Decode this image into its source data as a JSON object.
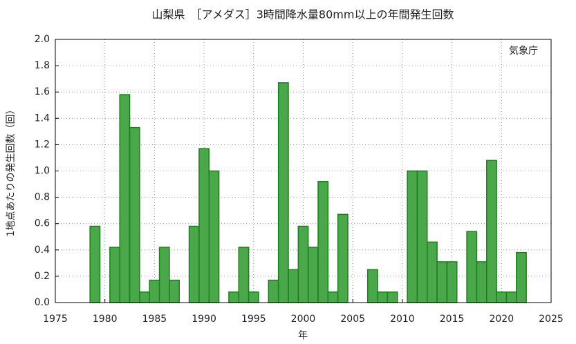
{
  "chart_data": {
    "type": "bar",
    "title": "山梨県　［アメダス］3時間降水量80mm以上の年間発生回数",
    "annotation": "気象庁",
    "xlabel": "年",
    "ylabel": "1地点あたりの発生回数（回）",
    "x": [
      1979,
      1980,
      1981,
      1982,
      1983,
      1984,
      1985,
      1986,
      1987,
      1988,
      1989,
      1990,
      1991,
      1992,
      1993,
      1994,
      1995,
      1996,
      1997,
      1998,
      1999,
      2000,
      2001,
      2002,
      2003,
      2004,
      2005,
      2006,
      2007,
      2008,
      2009,
      2010,
      2011,
      2012,
      2013,
      2014,
      2015,
      2016,
      2017,
      2018,
      2019,
      2020,
      2021,
      2022
    ],
    "values": [
      0.58,
      0,
      0.42,
      1.58,
      1.33,
      0.08,
      0.17,
      0.42,
      0.17,
      0,
      0.58,
      1.17,
      1.0,
      0,
      0.08,
      0.42,
      0.08,
      0,
      0.17,
      1.67,
      0.25,
      0.58,
      0.42,
      0.92,
      0.08,
      0.67,
      0,
      0,
      0.25,
      0.08,
      0.08,
      0,
      1.0,
      1.0,
      0.46,
      0.31,
      0.31,
      0,
      0.54,
      0.31,
      1.08,
      0.08,
      0.08,
      0.38
    ],
    "color": "#4aa84a",
    "edgecolor": "#1a7f1a",
    "xlim": [
      1975,
      2025
    ],
    "xticks": [
      1975,
      1980,
      1985,
      1990,
      1995,
      2000,
      2005,
      2010,
      2015,
      2020,
      2025
    ],
    "ylim": [
      0,
      2.0
    ],
    "yticks": [
      {
        "value": 0,
        "label": "0.0"
      },
      0.2,
      0.4,
      0.6,
      0.8,
      {
        "value": 1,
        "label": "1.0"
      },
      1.2,
      1.4,
      1.6,
      1.8,
      {
        "value": 2,
        "label": "2.0"
      }
    ],
    "grid": true
  }
}
